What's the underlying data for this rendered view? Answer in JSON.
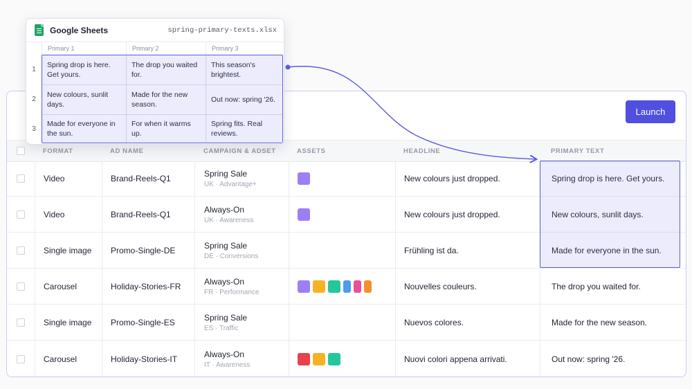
{
  "toolbar": {
    "launch_label": "Launch"
  },
  "table": {
    "headers": [
      "FORMAT",
      "AD NAME",
      "CAMPAIGN & ADSET",
      "ASSETS",
      "HEADLINE",
      "PRIMARY TEXT"
    ],
    "rows": [
      {
        "format": "Video",
        "ad_name": "Brand-Reels-Q1",
        "campaign": "Spring Sale",
        "adset": "UK · Advantage+",
        "assets": [
          "#9d7ff3"
        ],
        "headline": "New colours just dropped.",
        "primary_text": "Spring drop is here. Get yours."
      },
      {
        "format": "Video",
        "ad_name": "Brand-Reels-Q1",
        "campaign": "Always-On",
        "adset": "UK · Awareness",
        "assets": [
          "#9d7ff3"
        ],
        "headline": "New colours just dropped.",
        "primary_text": "New colours, sunlit days."
      },
      {
        "format": "Single image",
        "ad_name": "Promo-Single-DE",
        "campaign": "Spring Sale",
        "adset": "DE · Conversions",
        "assets": [],
        "headline": "Frühling ist da.",
        "primary_text": "Made for everyone in the sun."
      },
      {
        "format": "Carousel",
        "ad_name": "Holiday-Stories-FR",
        "campaign": "Always-On",
        "adset": "FR · Performance",
        "assets": [
          "#9d7ff3",
          "#f5b324",
          "#25c79a",
          "#4f9bf0",
          "#ec4f9a",
          "#f5902a"
        ],
        "headline": "Nouvelles couleurs.",
        "primary_text": "The drop you waited for."
      },
      {
        "format": "Single image",
        "ad_name": "Promo-Single-ES",
        "campaign": "Spring Sale",
        "adset": "ES · Traffic",
        "assets": [],
        "headline": "Nuevos colores.",
        "primary_text": "Made for the new season."
      },
      {
        "format": "Carousel",
        "ad_name": "Holiday-Stories-IT",
        "campaign": "Always-On",
        "adset": "IT · Awareness",
        "assets": [
          "#e8414a",
          "#f5b324",
          "#25c79a"
        ],
        "headline": "Nuovi colori appena arrivati.",
        "primary_text": "Out now: spring '26."
      }
    ]
  },
  "sheet": {
    "app_name": "Google Sheets",
    "file_name": "spring-primary-texts.xlsx",
    "columns": [
      "Primary 1",
      "Primary 2",
      "Primary 3"
    ],
    "rows": [
      {
        "num": "1",
        "cells": [
          "Spring drop is here. Get yours.",
          "The drop you waited for.",
          "This season's brightest."
        ]
      },
      {
        "num": "2",
        "cells": [
          "New colours, sunlit days.",
          "Made for the new season.",
          "Out now: spring '26."
        ]
      },
      {
        "num": "3",
        "cells": [
          "Made for everyone in the sun.",
          "For when it warms up.",
          "Spring fits. Real reviews."
        ]
      }
    ]
  },
  "colors": {
    "accent": "#4f4fe0",
    "selection": "#5a5be0",
    "sheets_green": "#1fa463"
  }
}
